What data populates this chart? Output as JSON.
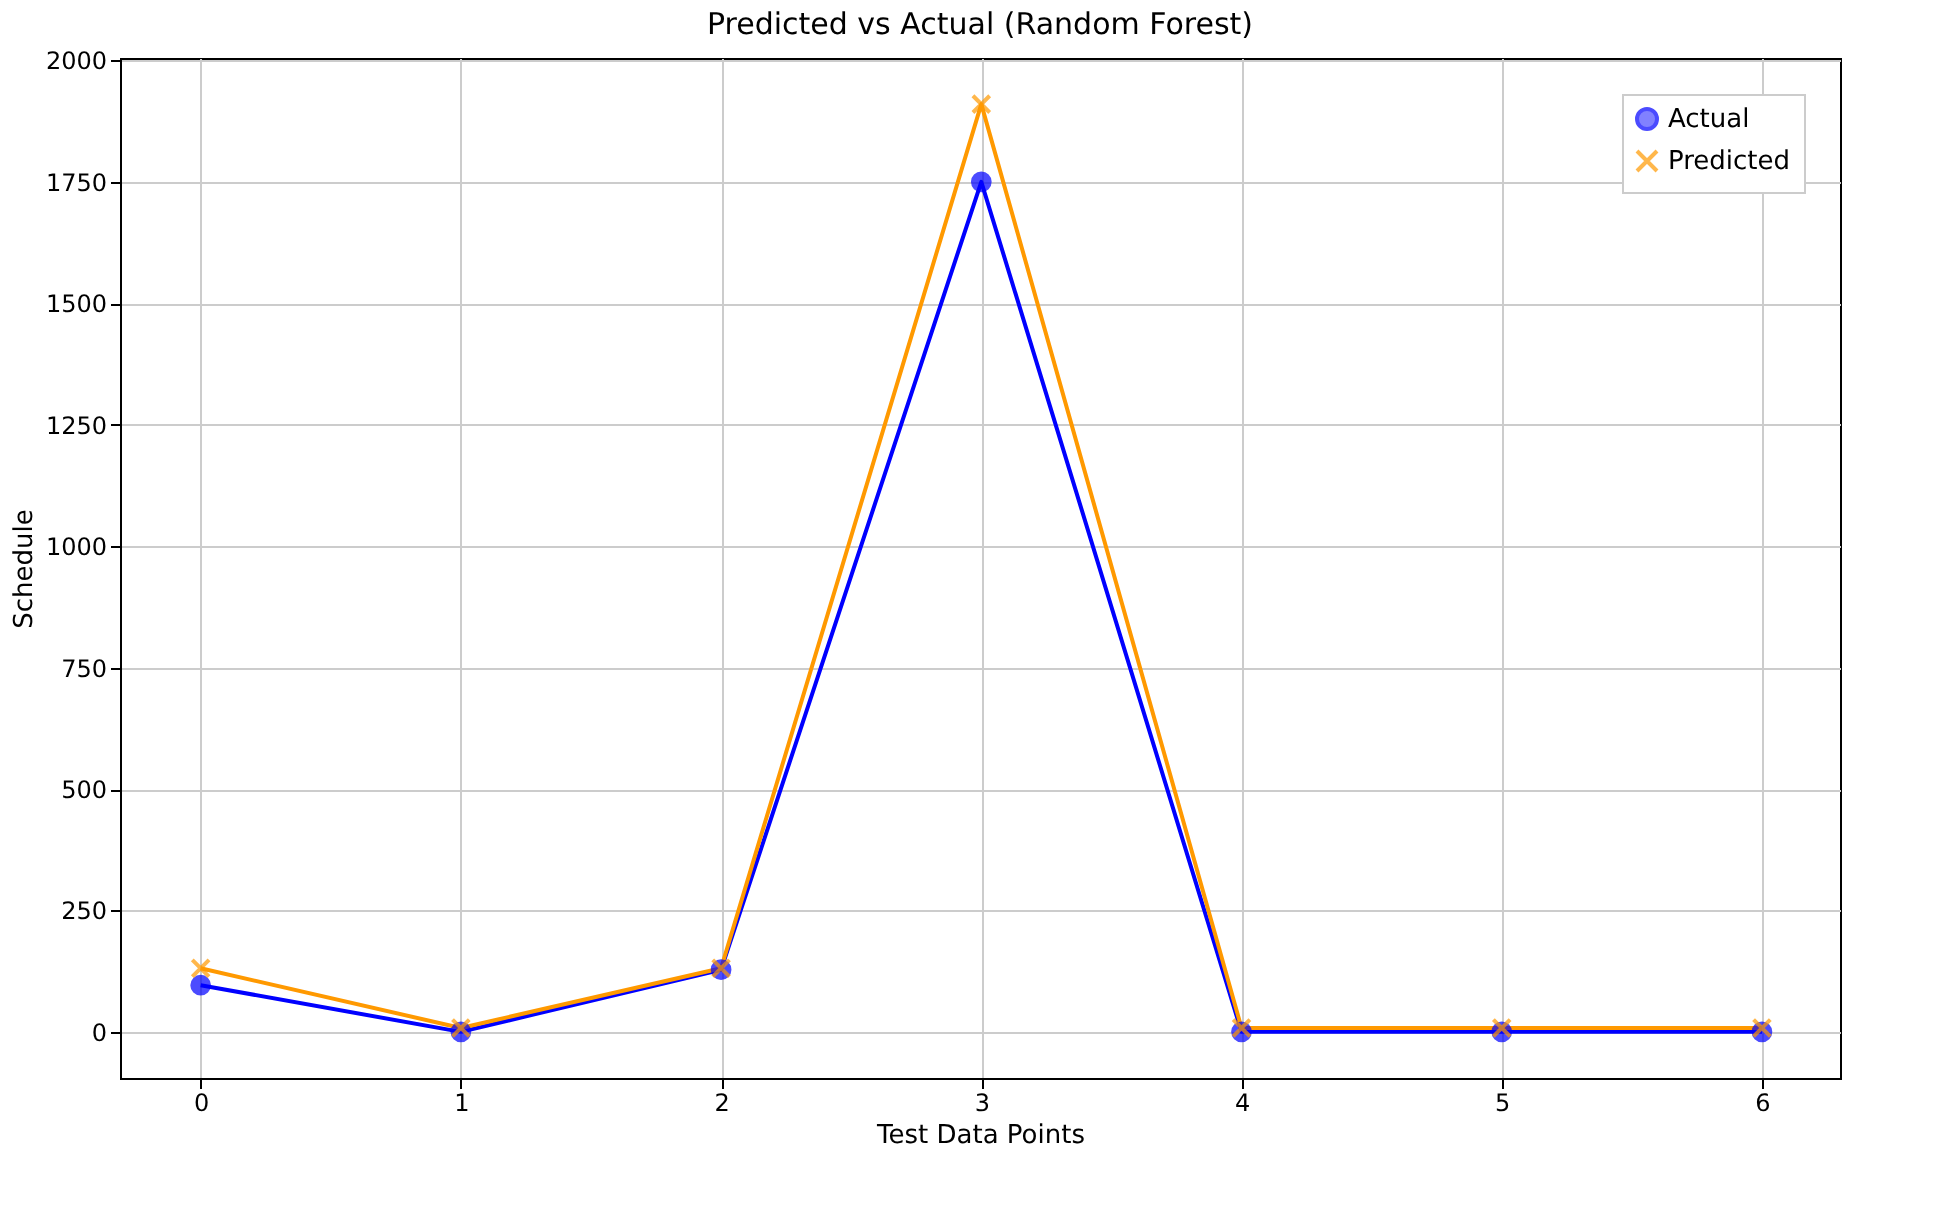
{
  "chart_data": {
    "type": "line",
    "title": "Predicted vs Actual (Random Forest)",
    "xlabel": "Test Data Points",
    "ylabel": "Schedule",
    "x": [
      0,
      1,
      2,
      3,
      4,
      5,
      6
    ],
    "series": [
      {
        "name": "Actual",
        "color": "#0000ff",
        "marker": "circle",
        "values": [
          96,
          0,
          128,
          1750,
          0,
          0,
          0
        ]
      },
      {
        "name": "Predicted",
        "color": "#ff9900",
        "marker": "cross",
        "values": [
          131,
          8,
          131,
          1910,
          8,
          8,
          8
        ]
      }
    ],
    "xlim": [
      -0.31,
      6.3
    ],
    "xticks": [
      0,
      1,
      2,
      3,
      4,
      5,
      6
    ],
    "ylim": [
      -95,
      2005
    ],
    "yticks": [
      0,
      250,
      500,
      750,
      1000,
      1250,
      1500,
      1750,
      2000
    ],
    "grid": true,
    "legend": "top right",
    "line_style": "solid"
  }
}
